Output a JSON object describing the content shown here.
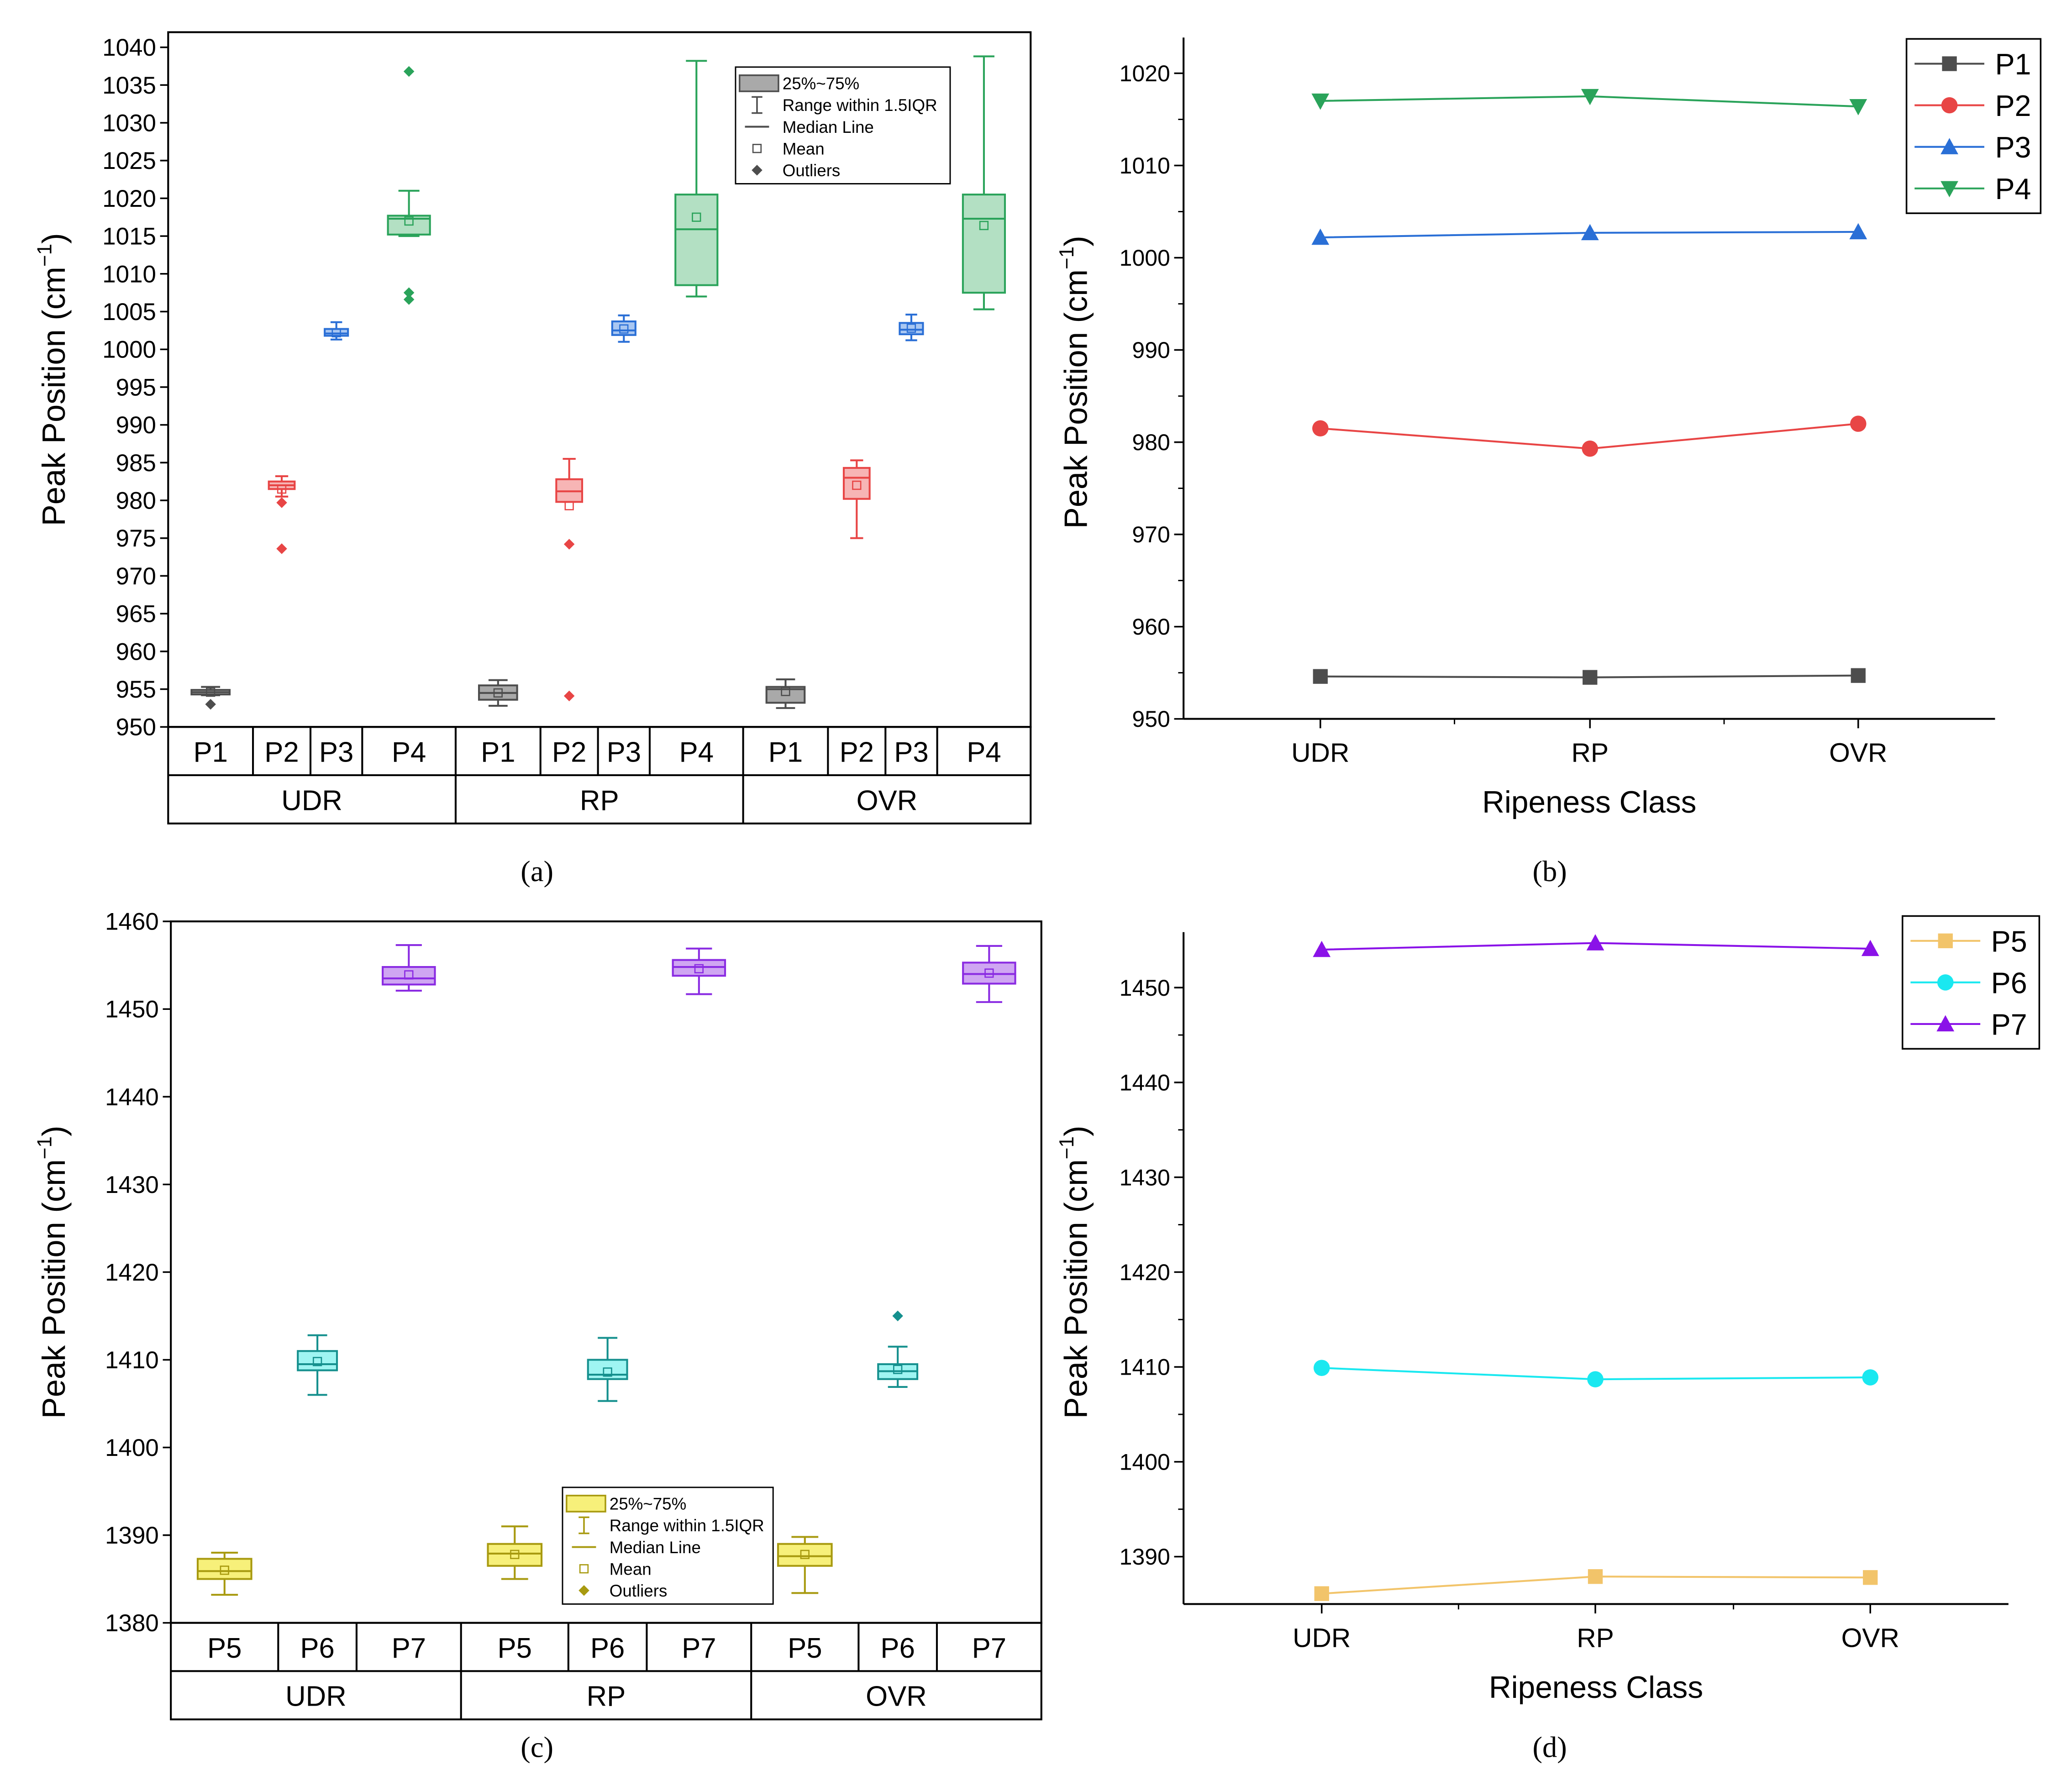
{
  "panels": {
    "a": {
      "label": "(a)"
    },
    "b": {
      "label": "(b)"
    },
    "c": {
      "label": "(c)"
    },
    "d": {
      "label": "(d)"
    }
  },
  "chart_data": [
    {
      "id": "a",
      "type": "box",
      "ylabel": "Peak Position (cm⁻¹)",
      "ylim": [
        950,
        1042
      ],
      "yticks": [
        950,
        955,
        960,
        965,
        970,
        975,
        980,
        985,
        990,
        995,
        1000,
        1005,
        1010,
        1015,
        1020,
        1025,
        1030,
        1035,
        1040
      ],
      "groups": [
        "UDR",
        "RP",
        "OVR"
      ],
      "peaks": [
        "P1",
        "P2",
        "P3",
        "P4"
      ],
      "colors": {
        "P1": "#4d4d4d",
        "P2": "#e84545",
        "P3": "#2a6fd6",
        "P4": "#2aa35a"
      },
      "fills": {
        "P1": "#a9a9a9",
        "P2": "#f7b5b5",
        "P3": "#a9c7f2",
        "P4": "#b3e0c3"
      },
      "legend": [
        "25%~75%",
        "Range within 1.5IQR",
        "Median Line",
        "Mean",
        "Outliers"
      ],
      "boxes": [
        {
          "group": "UDR",
          "peak": "P1",
          "wlo": 954.2,
          "q1": 954.3,
          "med": 954.6,
          "q3": 954.9,
          "whi": 955.3,
          "mean": 954.6,
          "outliers": [
            953.0
          ]
        },
        {
          "group": "UDR",
          "peak": "P2",
          "wlo": 980.5,
          "q1": 981.5,
          "med": 982.0,
          "q3": 982.5,
          "whi": 983.2,
          "mean": 981.5,
          "outliers": [
            979.7,
            973.6
          ]
        },
        {
          "group": "UDR",
          "peak": "P3",
          "wlo": 1001.3,
          "q1": 1001.8,
          "med": 1002.1,
          "q3": 1002.7,
          "whi": 1003.6,
          "mean": 1002.2,
          "outliers": []
        },
        {
          "group": "UDR",
          "peak": "P4",
          "wlo": 1015.0,
          "q1": 1015.2,
          "med": 1017.3,
          "q3": 1017.7,
          "whi": 1021.0,
          "mean": 1017.0,
          "outliers": [
            1036.8,
            1007.5,
            1006.6
          ]
        },
        {
          "group": "RP",
          "peak": "P1",
          "wlo": 952.8,
          "q1": 953.6,
          "med": 954.5,
          "q3": 955.5,
          "whi": 956.2,
          "mean": 954.5,
          "outliers": []
        },
        {
          "group": "RP",
          "peak": "P2",
          "wlo": 979.8,
          "q1": 979.8,
          "med": 981.2,
          "q3": 982.8,
          "whi": 985.5,
          "mean": 979.3,
          "outliers": [
            974.2,
            954.1
          ]
        },
        {
          "group": "RP",
          "peak": "P3",
          "wlo": 1001.0,
          "q1": 1001.9,
          "med": 1002.5,
          "q3": 1003.7,
          "whi": 1004.5,
          "mean": 1002.7,
          "outliers": []
        },
        {
          "group": "RP",
          "peak": "P4",
          "wlo": 1007.0,
          "q1": 1008.5,
          "med": 1015.9,
          "q3": 1020.5,
          "whi": 1038.2,
          "mean": 1017.5,
          "outliers": []
        },
        {
          "group": "OVR",
          "peak": "P1",
          "wlo": 952.5,
          "q1": 953.2,
          "med": 955.0,
          "q3": 955.3,
          "whi": 956.3,
          "mean": 954.7,
          "outliers": []
        },
        {
          "group": "OVR",
          "peak": "P2",
          "wlo": 975.0,
          "q1": 980.2,
          "med": 983.0,
          "q3": 984.3,
          "whi": 985.3,
          "mean": 982.0,
          "outliers": []
        },
        {
          "group": "OVR",
          "peak": "P3",
          "wlo": 1001.2,
          "q1": 1002.0,
          "med": 1002.6,
          "q3": 1003.5,
          "whi": 1004.6,
          "mean": 1002.8,
          "outliers": []
        },
        {
          "group": "OVR",
          "peak": "P4",
          "wlo": 1005.3,
          "q1": 1007.5,
          "med": 1017.3,
          "q3": 1020.5,
          "whi": 1038.8,
          "mean": 1016.4,
          "outliers": []
        }
      ]
    },
    {
      "id": "b",
      "type": "line",
      "xlabel": "Ripeness Class",
      "ylabel": "Peak Position (cm⁻¹)",
      "categories": [
        "UDR",
        "RP",
        "OVR"
      ],
      "ylim": [
        950,
        1023
      ],
      "yticks": [
        950,
        960,
        970,
        980,
        990,
        1000,
        1010,
        1020
      ],
      "series": [
        {
          "name": "P1",
          "color": "#4d4d4d",
          "marker": "square",
          "values": [
            954.6,
            954.5,
            954.7
          ]
        },
        {
          "name": "P2",
          "color": "#e84545",
          "marker": "circle",
          "values": [
            981.5,
            979.3,
            982.0
          ]
        },
        {
          "name": "P3",
          "color": "#2a6fd6",
          "marker": "triangle-up",
          "values": [
            1002.2,
            1002.7,
            1002.8
          ]
        },
        {
          "name": "P4",
          "color": "#2aa35a",
          "marker": "triangle-down",
          "values": [
            1017.0,
            1017.5,
            1016.4
          ]
        }
      ]
    },
    {
      "id": "c",
      "type": "box",
      "ylabel": "Peak Position (cm⁻¹)",
      "ylim": [
        1380,
        1460
      ],
      "yticks": [
        1380,
        1390,
        1400,
        1410,
        1420,
        1430,
        1440,
        1450,
        1460
      ],
      "groups": [
        "UDR",
        "RP",
        "OVR"
      ],
      "peaks": [
        "P5",
        "P6",
        "P7"
      ],
      "colors": {
        "P5": "#a89a10",
        "P6": "#15908e",
        "P7": "#8a2be2"
      },
      "fills": {
        "P5": "#f7f07a",
        "P6": "#9ff5f2",
        "P7": "#cfa6f2"
      },
      "legend": [
        "25%~75%",
        "Range within 1.5IQR",
        "Median Line",
        "Mean",
        "Outliers"
      ],
      "boxes": [
        {
          "group": "UDR",
          "peak": "P5",
          "wlo": 1383.2,
          "q1": 1385.0,
          "med": 1385.9,
          "q3": 1387.3,
          "whi": 1388.0,
          "mean": 1386.0,
          "outliers": []
        },
        {
          "group": "UDR",
          "peak": "P6",
          "wlo": 1406.0,
          "q1": 1408.8,
          "med": 1409.5,
          "q3": 1411.0,
          "whi": 1412.8,
          "mean": 1409.8,
          "outliers": []
        },
        {
          "group": "UDR",
          "peak": "P7",
          "wlo": 1452.1,
          "q1": 1452.8,
          "med": 1453.5,
          "q3": 1454.8,
          "whi": 1457.3,
          "mean": 1453.9,
          "outliers": []
        },
        {
          "group": "RP",
          "peak": "P5",
          "wlo": 1385.0,
          "q1": 1386.5,
          "med": 1387.9,
          "q3": 1389.0,
          "whi": 1391.0,
          "mean": 1387.8,
          "outliers": []
        },
        {
          "group": "RP",
          "peak": "P6",
          "wlo": 1405.3,
          "q1": 1407.8,
          "med": 1408.3,
          "q3": 1410.0,
          "whi": 1412.5,
          "mean": 1408.6,
          "outliers": []
        },
        {
          "group": "RP",
          "peak": "P7",
          "wlo": 1451.7,
          "q1": 1453.8,
          "med": 1454.8,
          "q3": 1455.6,
          "whi": 1456.9,
          "mean": 1454.6,
          "outliers": []
        },
        {
          "group": "OVR",
          "peak": "P5",
          "wlo": 1383.4,
          "q1": 1386.5,
          "med": 1387.6,
          "q3": 1389.0,
          "whi": 1389.8,
          "mean": 1387.8,
          "outliers": []
        },
        {
          "group": "OVR",
          "peak": "P6",
          "wlo": 1406.9,
          "q1": 1407.8,
          "med": 1408.7,
          "q3": 1409.5,
          "whi": 1411.5,
          "mean": 1408.9,
          "outliers": [
            1415.0
          ]
        },
        {
          "group": "OVR",
          "peak": "P7",
          "wlo": 1450.8,
          "q1": 1452.9,
          "med": 1454.0,
          "q3": 1455.3,
          "whi": 1457.2,
          "mean": 1454.1,
          "outliers": []
        }
      ]
    },
    {
      "id": "d",
      "type": "line",
      "xlabel": "Ripeness Class",
      "ylabel": "Peak Position (cm⁻¹)",
      "categories": [
        "UDR",
        "RP",
        "OVR"
      ],
      "ylim": [
        1385,
        1455
      ],
      "yticks": [
        1390,
        1400,
        1410,
        1420,
        1430,
        1440,
        1450
      ],
      "series": [
        {
          "name": "P5",
          "color": "#f2c46a",
          "marker": "square",
          "values": [
            1386.1,
            1387.9,
            1387.8
          ]
        },
        {
          "name": "P6",
          "color": "#1ae8f0",
          "marker": "circle",
          "values": [
            1409.9,
            1408.7,
            1408.9
          ]
        },
        {
          "name": "P7",
          "color": "#8a12e8",
          "marker": "triangle-up",
          "values": [
            1454.0,
            1454.7,
            1454.1
          ]
        }
      ]
    }
  ]
}
